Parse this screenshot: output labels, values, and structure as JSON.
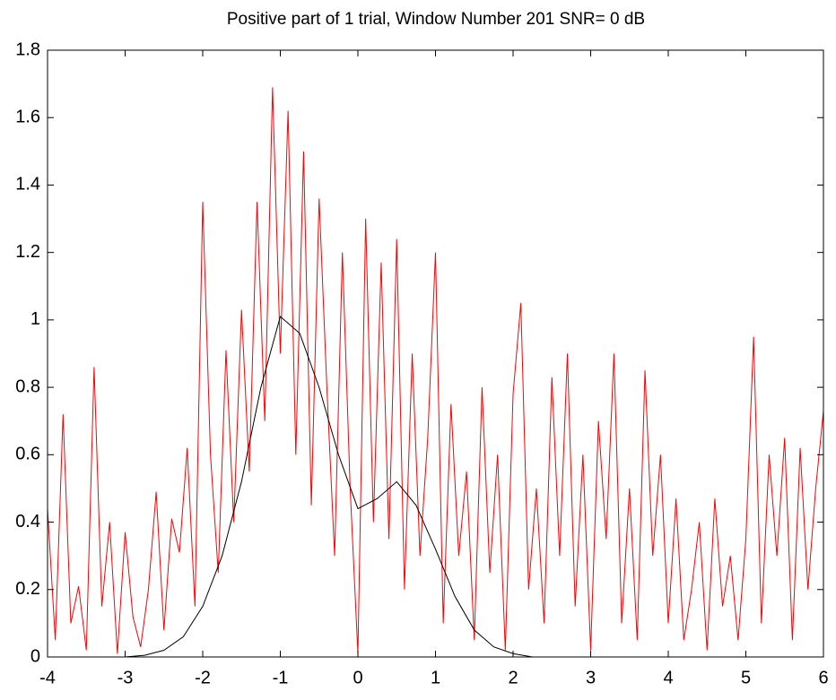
{
  "chart_data": {
    "type": "line",
    "title": "Positive part of 1 trial, Window Number 201  SNR= 0 dB",
    "xlim": [
      -4,
      6
    ],
    "ylim": [
      0,
      1.8
    ],
    "xticks": [
      -4,
      -3,
      -2,
      -1,
      0,
      1,
      2,
      3,
      4,
      5,
      6
    ],
    "yticks": [
      0,
      0.2,
      0.4,
      0.6,
      0.8,
      1,
      1.2,
      1.4,
      1.6,
      1.8
    ],
    "grid": false,
    "series": [
      {
        "color": "#ff0000",
        "x": [
          -4.0,
          -3.9,
          -3.8,
          -3.7,
          -3.6,
          -3.5,
          -3.4,
          -3.3,
          -3.2,
          -3.1,
          -3.0,
          -2.9,
          -2.8,
          -2.7,
          -2.6,
          -2.5,
          -2.4,
          -2.3,
          -2.2,
          -2.1,
          -2.0,
          -1.9,
          -1.8,
          -1.7,
          -1.6,
          -1.5,
          -1.4,
          -1.3,
          -1.2,
          -1.1,
          -1.0,
          -0.9,
          -0.8,
          -0.7,
          -0.6,
          -0.5,
          -0.4,
          -0.3,
          -0.2,
          -0.1,
          0.0,
          0.1,
          0.2,
          0.3,
          0.4,
          0.5,
          0.6,
          0.7,
          0.8,
          0.9,
          1.0,
          1.1,
          1.2,
          1.3,
          1.4,
          1.5,
          1.6,
          1.7,
          1.8,
          1.9,
          2.0,
          2.1,
          2.2,
          2.3,
          2.4,
          2.5,
          2.6,
          2.7,
          2.8,
          2.9,
          3.0,
          3.1,
          3.2,
          3.3,
          3.4,
          3.5,
          3.6,
          3.7,
          3.8,
          3.9,
          4.0,
          4.1,
          4.2,
          4.3,
          4.4,
          4.5,
          4.6,
          4.7,
          4.8,
          4.9,
          5.0,
          5.1,
          5.2,
          5.3,
          5.4,
          5.5,
          5.6,
          5.7,
          5.8,
          5.9,
          6.0
        ],
        "values": [
          0.44,
          0.05,
          0.72,
          0.1,
          0.21,
          0.02,
          0.86,
          0.15,
          0.4,
          0.01,
          0.37,
          0.12,
          0.03,
          0.2,
          0.49,
          0.08,
          0.41,
          0.31,
          0.62,
          0.15,
          1.35,
          0.6,
          0.25,
          0.91,
          0.4,
          1.03,
          0.55,
          1.35,
          0.7,
          1.69,
          0.9,
          1.62,
          0.6,
          1.5,
          0.45,
          1.36,
          0.8,
          0.3,
          1.2,
          0.5,
          0.01,
          1.3,
          0.4,
          1.17,
          0.35,
          1.24,
          0.2,
          0.9,
          0.3,
          0.65,
          1.2,
          0.1,
          0.75,
          0.3,
          0.55,
          0.05,
          0.8,
          0.25,
          0.6,
          0.02,
          0.78,
          1.05,
          0.2,
          0.5,
          0.1,
          0.83,
          0.3,
          0.9,
          0.15,
          0.6,
          0.02,
          0.7,
          0.35,
          0.9,
          0.1,
          0.5,
          0.05,
          0.85,
          0.3,
          0.6,
          0.1,
          0.47,
          0.05,
          0.2,
          0.4,
          0.02,
          0.47,
          0.15,
          0.3,
          0.05,
          0.35,
          0.95,
          0.1,
          0.6,
          0.3,
          0.65,
          0.05,
          0.62,
          0.2,
          0.5,
          0.73
        ]
      },
      {
        "color": "#000000",
        "x": [
          -4,
          -3.75,
          -3.5,
          -3.25,
          -3,
          -2.75,
          -2.5,
          -2.25,
          -2,
          -1.75,
          -1.5,
          -1.25,
          -1,
          -0.75,
          -0.5,
          -0.25,
          0,
          0.25,
          0.5,
          0.75,
          1,
          1.25,
          1.5,
          1.75,
          2,
          2.25,
          2.5,
          2.75,
          3,
          3.25,
          3.5,
          3.75,
          4,
          4.25,
          4.5,
          4.75
        ],
        "values": [
          0,
          0,
          0,
          0,
          0,
          0.005,
          0.02,
          0.06,
          0.15,
          0.3,
          0.52,
          0.8,
          1.01,
          0.96,
          0.8,
          0.6,
          0.44,
          0.47,
          0.52,
          0.45,
          0.32,
          0.18,
          0.08,
          0.03,
          0.01,
          0,
          0,
          0,
          0,
          0,
          0,
          0,
          0,
          0,
          0,
          0
        ]
      }
    ]
  }
}
